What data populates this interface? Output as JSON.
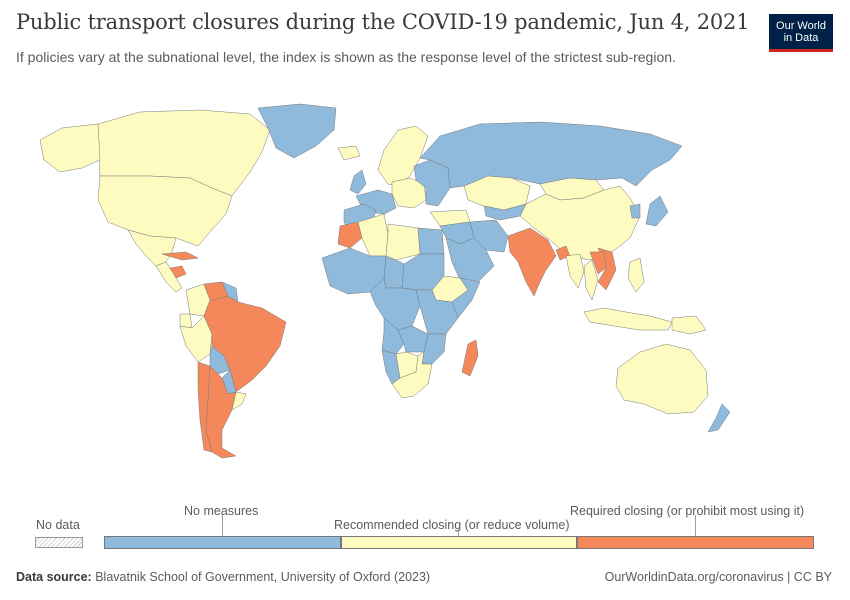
{
  "header": {
    "title": "Public transport closures during the COVID-19 pandemic, Jun 4, 2021",
    "subtitle": "If policies vary at the subnational level, the index is shown as the response level of the strictest sub-region."
  },
  "logo": {
    "line1": "Our World",
    "line2": "in Data"
  },
  "colors": {
    "no_measures": "#8fbadb",
    "recommended": "#fdfbc0",
    "required": "#f5885a",
    "no_data": "#e8e8e8",
    "border": "#7a7a7a"
  },
  "legend": {
    "no_data_label": "No data",
    "categories": [
      {
        "label": "No measures",
        "key": "no_measures"
      },
      {
        "label": "Recommended closing (or reduce volume)",
        "key": "recommended"
      },
      {
        "label": "Required closing (or prohibit most using it)",
        "key": "required"
      }
    ]
  },
  "footer": {
    "source_label": "Data source:",
    "source_text": "Blavatnik School of Government, University of Oxford (2023)",
    "url_text": "OurWorldinData.org/coronavirus | CC BY"
  },
  "map_data": {
    "type": "choropleth",
    "date": "Jun 4, 2021",
    "regions": [
      {
        "name": "Canada",
        "category": "recommended"
      },
      {
        "name": "United States",
        "category": "recommended"
      },
      {
        "name": "Alaska",
        "category": "recommended"
      },
      {
        "name": "Greenland",
        "category": "no_measures"
      },
      {
        "name": "Mexico",
        "category": "recommended"
      },
      {
        "name": "Cuba",
        "category": "required"
      },
      {
        "name": "Central America",
        "category": "recommended"
      },
      {
        "name": "Honduras",
        "category": "required"
      },
      {
        "name": "Colombia",
        "category": "recommended"
      },
      {
        "name": "Venezuela",
        "category": "required"
      },
      {
        "name": "Guyana",
        "category": "no_measures"
      },
      {
        "name": "Ecuador",
        "category": "recommended"
      },
      {
        "name": "Peru",
        "category": "recommended"
      },
      {
        "name": "Brazil",
        "category": "required"
      },
      {
        "name": "Bolivia",
        "category": "no_measures"
      },
      {
        "name": "Paraguay",
        "category": "no_measures"
      },
      {
        "name": "Chile",
        "category": "required"
      },
      {
        "name": "Argentina",
        "category": "required"
      },
      {
        "name": "Uruguay",
        "category": "recommended"
      },
      {
        "name": "Iceland",
        "category": "recommended"
      },
      {
        "name": "United Kingdom",
        "category": "no_measures"
      },
      {
        "name": "Scandinavia",
        "category": "recommended"
      },
      {
        "name": "Western Europe",
        "category": "no_measures"
      },
      {
        "name": "Iberia",
        "category": "no_measures"
      },
      {
        "name": "Central Europe",
        "category": "recommended"
      },
      {
        "name": "Eastern Europe",
        "category": "no_measures"
      },
      {
        "name": "Russia",
        "category": "no_measures"
      },
      {
        "name": "Kazakhstan",
        "category": "recommended"
      },
      {
        "name": "Mongolia",
        "category": "recommended"
      },
      {
        "name": "China",
        "category": "recommended"
      },
      {
        "name": "Japan",
        "category": "no_measures"
      },
      {
        "name": "Korea",
        "category": "no_measures"
      },
      {
        "name": "Central Asia",
        "category": "no_measures"
      },
      {
        "name": "Iran",
        "category": "no_measures"
      },
      {
        "name": "Turkey",
        "category": "recommended"
      },
      {
        "name": "Middle East",
        "category": "no_measures"
      },
      {
        "name": "Saudi Arabia",
        "category": "no_measures"
      },
      {
        "name": "India",
        "category": "required"
      },
      {
        "name": "Bangladesh",
        "category": "required"
      },
      {
        "name": "Myanmar",
        "category": "recommended"
      },
      {
        "name": "Vietnam",
        "category": "required"
      },
      {
        "name": "Laos",
        "category": "required"
      },
      {
        "name": "Thailand",
        "category": "recommended"
      },
      {
        "name": "Philippines",
        "category": "recommended"
      },
      {
        "name": "Indonesia",
        "category": "recommended"
      },
      {
        "name": "Papua New Guinea",
        "category": "recommended"
      },
      {
        "name": "Australia",
        "category": "recommended"
      },
      {
        "name": "New Zealand",
        "category": "no_measures"
      },
      {
        "name": "Morocco",
        "category": "required"
      },
      {
        "name": "Algeria",
        "category": "recommended"
      },
      {
        "name": "Libya",
        "category": "recommended"
      },
      {
        "name": "Egypt",
        "category": "no_measures"
      },
      {
        "name": "West Africa",
        "category": "no_measures"
      },
      {
        "name": "Chad",
        "category": "no_measures"
      },
      {
        "name": "Sudan",
        "category": "no_measures"
      },
      {
        "name": "Ethiopia",
        "category": "recommended"
      },
      {
        "name": "Somalia",
        "category": "no_measures"
      },
      {
        "name": "Central Africa",
        "category": "no_measures"
      },
      {
        "name": "East Africa",
        "category": "no_measures"
      },
      {
        "name": "Angola",
        "category": "no_measures"
      },
      {
        "name": "Zambia",
        "category": "no_measures"
      },
      {
        "name": "Mozambique",
        "category": "no_measures"
      },
      {
        "name": "Namibia",
        "category": "no_measures"
      },
      {
        "name": "Botswana",
        "category": "recommended"
      },
      {
        "name": "South Africa",
        "category": "recommended"
      },
      {
        "name": "Madagascar",
        "category": "required"
      }
    ]
  }
}
